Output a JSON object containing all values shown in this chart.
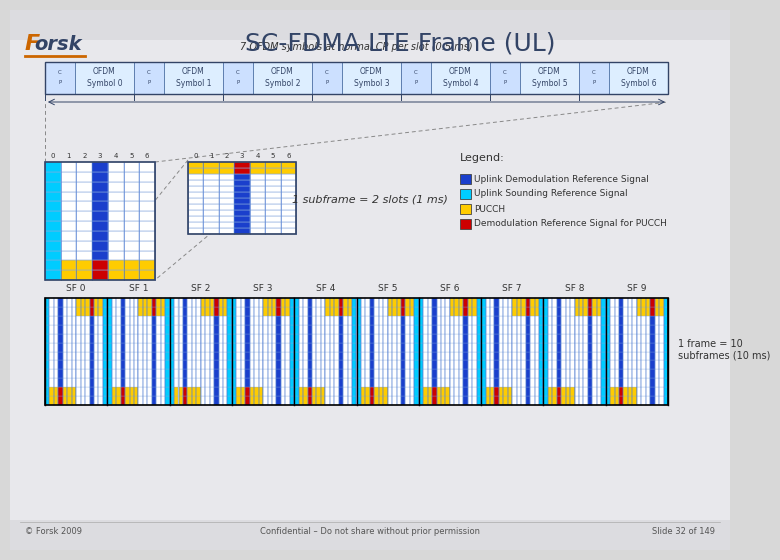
{
  "title": "SC-FDMA LTE Frame (UL)",
  "bg_color": "#d8d8d8",
  "bg_content": "#e8e8ec",
  "slot_label": "7 OFDM symbols at normal CP per slot (0.5 ms)",
  "ofdm_symbols": [
    "OFDM\nSymbol 0",
    "OFDM\nSymbol 1",
    "OFDM\nSymbol 2",
    "OFDM\nSymbol 3",
    "OFDM\nSymbol 4",
    "OFDM\nSymbol 5",
    "OFDM\nSymbol 6"
  ],
  "color_blue": "#1a3fcc",
  "color_cyan": "#00ccff",
  "color_yellow": "#ffcc00",
  "color_red": "#cc0000",
  "color_white": "#ffffff",
  "color_grid_h": "#88aadd",
  "color_grid_v": "#3366cc",
  "sf_labels": [
    "SF 0",
    "SF 1",
    "SF 2",
    "SF 3",
    "SF 4",
    "SF 5",
    "SF 6",
    "SF 7",
    "SF 8",
    "SF 9"
  ],
  "subframe_label": "1 subframe = 2 slots (1 ms)",
  "frame_label": "1 frame = 10\nsubframes (10 ms)",
  "legend_title": "Legend:",
  "legend_items": [
    {
      "label": "Uplink Demodulation Reference Signal",
      "color": "#1a3fcc"
    },
    {
      "label": "Uplink Sounding Reference Signal",
      "color": "#00ccff"
    },
    {
      "label": "PUCCH",
      "color": "#ffcc00"
    },
    {
      "label": "Demodulation Reference Signal for PUCCH",
      "color": "#cc0000"
    }
  ],
  "footer_left": "© Forsk 2009",
  "footer_center": "Confidential – Do not share without prior permission",
  "footer_right": "Slide 32 of 149"
}
